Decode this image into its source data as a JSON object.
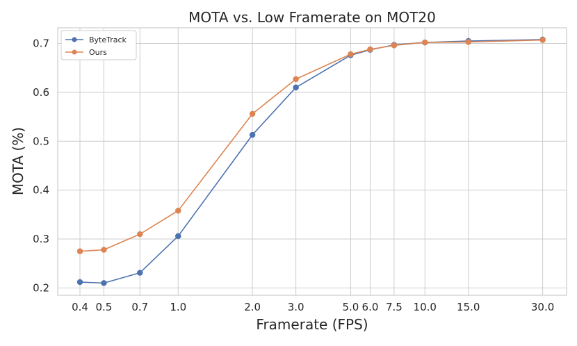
{
  "chart_data": {
    "type": "line",
    "title": "MOTA vs. Low Framerate on MOT20",
    "xlabel": "Framerate (FPS)",
    "ylabel": "MOTA (%)",
    "x_scale": "log",
    "x": [
      0.4,
      0.5,
      0.7,
      1.0,
      2.0,
      3.0,
      5.0,
      6.0,
      7.5,
      10.0,
      15.0,
      30.0
    ],
    "x_tick_labels": [
      "0.4",
      "0.5",
      "0.7",
      "1.0",
      "2.0",
      "3.0",
      "5.0",
      "6.0",
      "7.5",
      "10.0",
      "15.0",
      "30.0"
    ],
    "y_ticks": [
      0.2,
      0.3,
      0.4,
      0.5,
      0.6,
      0.7
    ],
    "y_tick_labels": [
      "0.2",
      "0.3",
      "0.4",
      "0.5",
      "0.6",
      "0.7"
    ],
    "ylim": [
      0.185,
      0.732
    ],
    "xlim": [
      0.325,
      37.5
    ],
    "grid": true,
    "legend_position": "top-left",
    "series": [
      {
        "name": "ByteTrack",
        "color": "#4c72b0",
        "values": [
          0.212,
          0.21,
          0.231,
          0.306,
          0.513,
          0.61,
          0.676,
          0.687,
          0.697,
          0.702,
          0.705,
          0.708
        ]
      },
      {
        "name": "Ours",
        "color": "#dd8452",
        "values": [
          0.275,
          0.278,
          0.31,
          0.358,
          0.556,
          0.627,
          0.678,
          0.688,
          0.696,
          0.702,
          0.703,
          0.707
        ]
      }
    ]
  }
}
